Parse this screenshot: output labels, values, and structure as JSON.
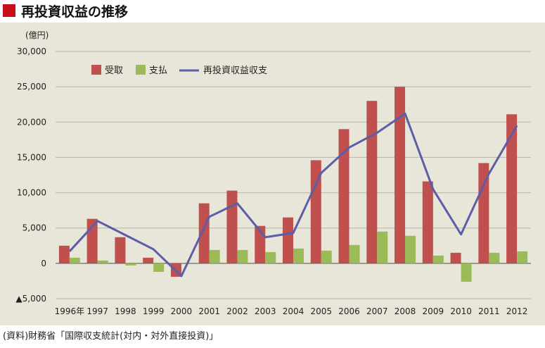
{
  "title": "再投資収益の推移",
  "source": "(資料)財務省「国際収支統計(対内・対外直接投資)」",
  "colors": {
    "title_mark": "#c8101d",
    "panel_bg": "#e8e6d9",
    "receipts": "#c0504d",
    "payments": "#9bbb59",
    "balance": "#5b5ea6"
  },
  "chart_data": {
    "type": "bar",
    "title": "再投資収益の推移",
    "ylabel": "(億円)",
    "xlabel": "",
    "ylim": [
      -5000,
      30000
    ],
    "yticks": [
      -5000,
      0,
      5000,
      10000,
      15000,
      20000,
      25000,
      30000
    ],
    "ytick_labels": [
      "▲5,000",
      "0",
      "5,000",
      "10,000",
      "15,000",
      "20,000",
      "25,000",
      "30,000"
    ],
    "grid": true,
    "legend_position": "top-left",
    "categories": [
      "1996年",
      "1997",
      "1998",
      "1999",
      "2000",
      "2001",
      "2002",
      "2003",
      "2004",
      "2005",
      "2006",
      "2007",
      "2008",
      "2009",
      "2010",
      "2011",
      "2012"
    ],
    "series": [
      {
        "name": "受取",
        "kind": "bar",
        "values": [
          2500,
          6300,
          3700,
          800,
          -1900,
          8500,
          10300,
          5300,
          6500,
          14600,
          19000,
          23000,
          25000,
          11600,
          1500,
          14200,
          21100
        ]
      },
      {
        "name": "支払",
        "kind": "bar",
        "values": [
          800,
          400,
          -300,
          -1200,
          0,
          1900,
          1900,
          1600,
          2100,
          1800,
          2600,
          4500,
          3900,
          1100,
          -2600,
          1500,
          1700
        ]
      },
      {
        "name": "再投資収益収支",
        "kind": "line",
        "values": [
          1700,
          6000,
          4000,
          2000,
          -1800,
          6600,
          8500,
          3700,
          4300,
          12800,
          16400,
          18500,
          21200,
          10500,
          4100,
          12700,
          19500
        ]
      }
    ]
  }
}
